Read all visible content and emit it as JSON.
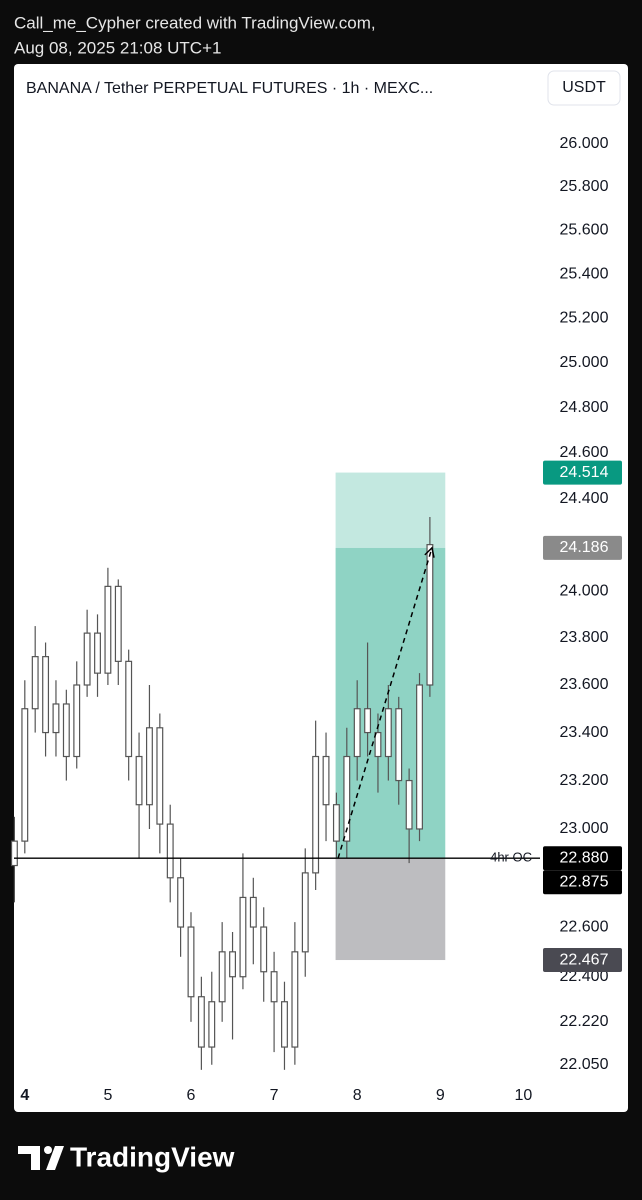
{
  "header": {
    "credit": "Call_me_Cypher created with TradingView.com,",
    "timestamp": "Aug 08, 2025 21:08 UTC+1"
  },
  "brand": "TradingView",
  "chart_data": {
    "type": "candlestick",
    "title": "BANANA / Tether PERPETUAL FUTURES · 1h · MEXC...",
    "currency": "USDT",
    "log_scale": true,
    "grid": false,
    "candle_color": "#555555",
    "xlim": [
      3.87,
      10.2
    ],
    "xticks": [
      4,
      5,
      6,
      7,
      8,
      9,
      10
    ],
    "ylim": [
      21.99,
      26.18
    ],
    "yticks": [
      {
        "value": 26.0,
        "label": "26.000"
      },
      {
        "value": 25.8,
        "label": "25.800"
      },
      {
        "value": 25.6,
        "label": "25.600"
      },
      {
        "value": 25.4,
        "label": "25.400"
      },
      {
        "value": 25.2,
        "label": "25.200"
      },
      {
        "value": 25.0,
        "label": "25.000"
      },
      {
        "value": 24.8,
        "label": "24.800"
      },
      {
        "value": 24.6,
        "label": "24.600"
      },
      {
        "value": 24.4,
        "label": "24.400"
      },
      {
        "value": 24.0,
        "label": "24.000"
      },
      {
        "value": 23.8,
        "label": "23.800"
      },
      {
        "value": 23.6,
        "label": "23.600"
      },
      {
        "value": 23.4,
        "label": "23.400"
      },
      {
        "value": 23.2,
        "label": "23.200"
      },
      {
        "value": 23.0,
        "label": "23.000"
      },
      {
        "value": 22.6,
        "label": "22.600"
      },
      {
        "value": 22.4,
        "label": "22.400"
      },
      {
        "value": 22.22,
        "label": "22.220"
      },
      {
        "value": 22.05,
        "label": "22.050"
      }
    ],
    "x": [
      3.875,
      4.0,
      4.125,
      4.25,
      4.375,
      4.5,
      4.625,
      4.75,
      4.875,
      5.0,
      5.125,
      5.25,
      5.375,
      5.5,
      5.625,
      5.75,
      5.875,
      6.0,
      6.125,
      6.25,
      6.375,
      6.5,
      6.625,
      6.75,
      6.875,
      7.0,
      7.125,
      7.25,
      7.375,
      7.5,
      7.625,
      7.75,
      7.875,
      8.0,
      8.125,
      8.25,
      8.375,
      8.5,
      8.625,
      8.75,
      8.875
    ],
    "open": [
      22.85,
      22.95,
      23.5,
      23.72,
      23.4,
      23.52,
      23.3,
      23.6,
      23.82,
      23.65,
      24.02,
      23.7,
      23.3,
      23.1,
      23.42,
      23.02,
      22.8,
      22.6,
      22.32,
      22.12,
      22.3,
      22.5,
      22.4,
      22.72,
      22.6,
      22.42,
      22.3,
      22.12,
      22.5,
      22.82,
      23.3,
      23.1,
      22.95,
      23.3,
      23.5,
      23.4,
      23.3,
      23.5,
      23.2,
      23.0,
      23.6
    ],
    "high": [
      23.05,
      23.62,
      23.85,
      23.78,
      23.62,
      23.58,
      23.7,
      23.92,
      23.9,
      24.1,
      24.05,
      23.75,
      23.4,
      23.6,
      23.48,
      23.1,
      22.88,
      22.66,
      22.4,
      22.42,
      22.62,
      22.58,
      22.9,
      22.8,
      22.68,
      22.5,
      22.38,
      22.62,
      22.92,
      23.45,
      23.4,
      23.15,
      23.42,
      23.62,
      23.78,
      23.48,
      23.6,
      23.55,
      23.25,
      23.65,
      24.32
    ],
    "low": [
      22.7,
      22.9,
      23.4,
      23.3,
      23.3,
      23.2,
      23.25,
      23.55,
      23.55,
      23.6,
      23.6,
      23.2,
      22.88,
      23.0,
      22.9,
      22.7,
      22.48,
      22.22,
      22.03,
      22.05,
      22.22,
      22.15,
      22.35,
      22.45,
      22.3,
      22.1,
      22.03,
      22.05,
      22.4,
      22.75,
      22.95,
      22.88,
      22.88,
      23.2,
      23.3,
      23.15,
      23.2,
      23.1,
      22.86,
      22.95,
      23.55
    ],
    "close": [
      22.95,
      23.5,
      23.72,
      23.4,
      23.52,
      23.3,
      23.6,
      23.82,
      23.65,
      24.02,
      23.7,
      23.3,
      23.1,
      23.42,
      23.02,
      22.8,
      22.6,
      22.32,
      22.12,
      22.3,
      22.5,
      22.4,
      22.72,
      22.6,
      22.42,
      22.3,
      22.12,
      22.5,
      22.82,
      23.3,
      23.1,
      22.95,
      23.3,
      23.5,
      23.4,
      23.3,
      23.5,
      23.2,
      23.0,
      23.6,
      24.2
    ],
    "position": {
      "start": 7.74,
      "end": 9.06,
      "entry": 22.88,
      "target": 24.514,
      "stop": 22.467,
      "current": 24.186,
      "profit_color": "#8fd3c4",
      "profit_light_color": "#c3e8e0",
      "loss_color": "#bdbdc0"
    },
    "trend_arrow": {
      "x": [
        7.77,
        8.9
      ],
      "y": [
        22.88,
        24.186
      ]
    },
    "hline": {
      "value": 22.88,
      "label": "4hr OC"
    },
    "price_labels": [
      {
        "value": 24.514,
        "label": "24.514",
        "color": "#089981"
      },
      {
        "value": 24.186,
        "label": "24.186",
        "color": "#8a8a8a"
      },
      {
        "value": 22.88,
        "label": "22.880",
        "color": "#000000"
      },
      {
        "value": 22.875,
        "label": "22.875",
        "color": "#000000"
      },
      {
        "value": 22.467,
        "label": "22.467",
        "color": "#4a4a52"
      }
    ]
  }
}
